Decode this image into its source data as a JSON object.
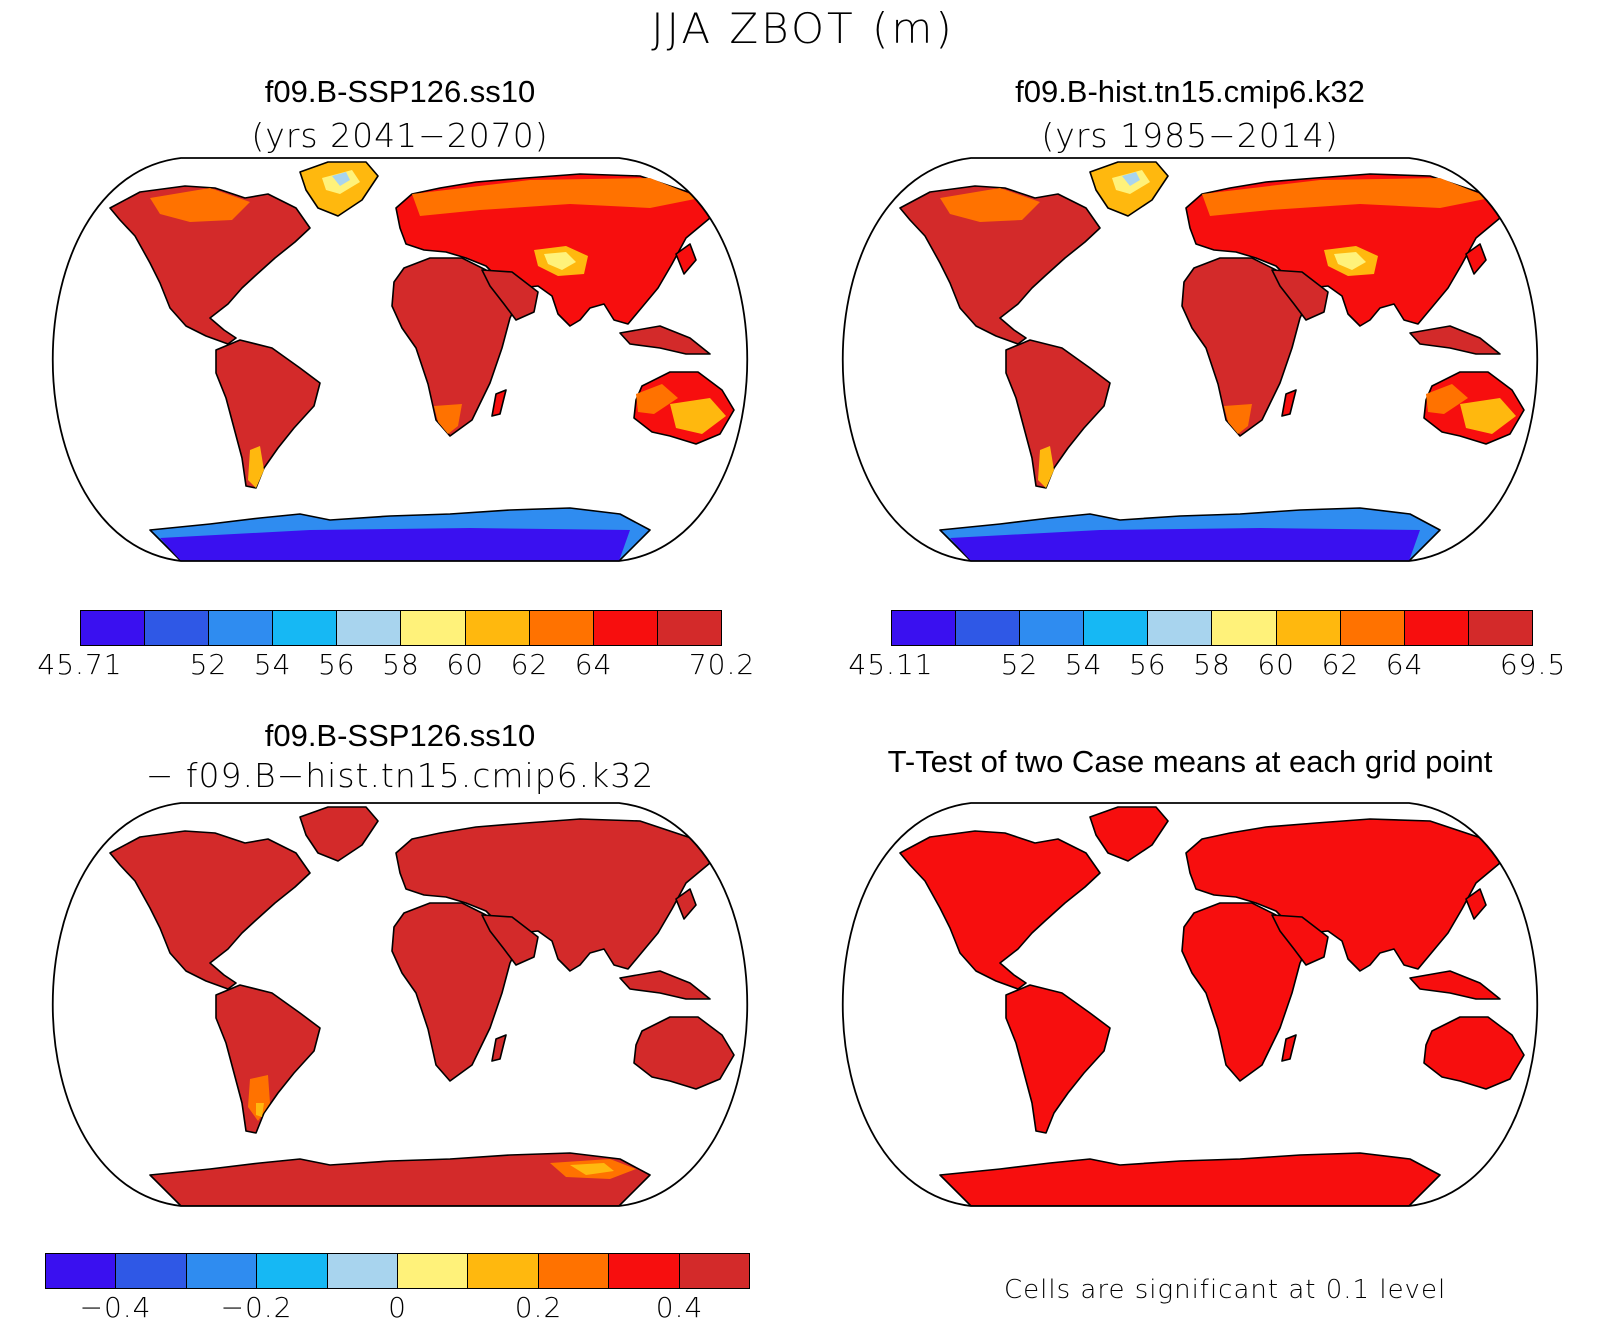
{
  "title": "JJA ZBOT (m)",
  "palette": [
    "#3a10f0",
    "#2f58e6",
    "#2f8cf0",
    "#16b8f4",
    "#a8d4ee",
    "#fff27a",
    "#ffb80e",
    "#ff7200",
    "#f70e0e",
    "#d32a2a"
  ],
  "panels": [
    {
      "id": "case1",
      "title_line1": "f09.B-SSP126.ss10",
      "title_line2": "(yrs 2041−2070)",
      "fill_pattern": "case",
      "colorbar": {
        "labels": [
          "45.71",
          "52",
          "54",
          "56",
          "58",
          "60",
          "62",
          "64",
          "70.2"
        ]
      }
    },
    {
      "id": "case2",
      "title_line1": "f09.B-hist.tn15.cmip6.k32",
      "title_line2": "(yrs 1985−2014)",
      "fill_pattern": "case",
      "colorbar": {
        "labels": [
          "45.11",
          "52",
          "54",
          "56",
          "58",
          "60",
          "62",
          "64",
          "69.5"
        ]
      }
    },
    {
      "id": "diff",
      "title_line1": "f09.B-SSP126.ss10",
      "title_line2": "− f09.B−hist.tn15.cmip6.k32",
      "fill_pattern": "diff",
      "colorbar": {
        "labels": [
          "−0.4",
          "−0.2",
          "0",
          "0.2",
          "0.4"
        ]
      }
    },
    {
      "id": "ttest",
      "title_line1": "T-Test of two Case means at each grid point",
      "fill_pattern": "ttest",
      "note": "Cells are significant at 0.1 level"
    }
  ]
}
